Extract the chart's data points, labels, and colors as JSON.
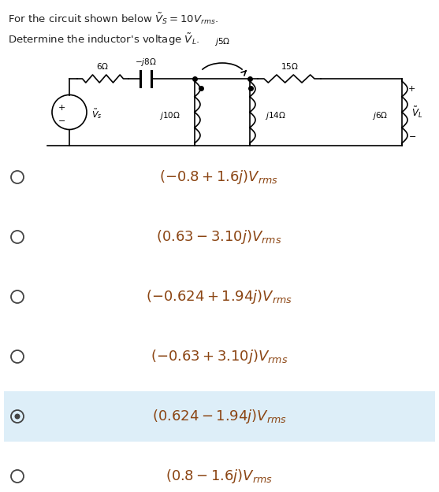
{
  "selected_index": 4,
  "text_color": "#8B4513",
  "bg_color": "#ffffff",
  "selected_bg": "#ddeef8",
  "radio_color": "#444444",
  "circuit_color": "#000000",
  "options_latex": [
    "(-0.8 + 1.6j)V_{rms}",
    "(0.63 - 3.10j)V_{rms}",
    "(-0.624 + 1.94j)V_{rms}",
    "(-0.63 + 3.10j)V_{rms}",
    "(0.624 - 1.94j)V_{rms}",
    "(0.8 - 1.6j)V_{rms}"
  ],
  "fig_width": 5.57,
  "fig_height": 6.25,
  "dpi": 100
}
